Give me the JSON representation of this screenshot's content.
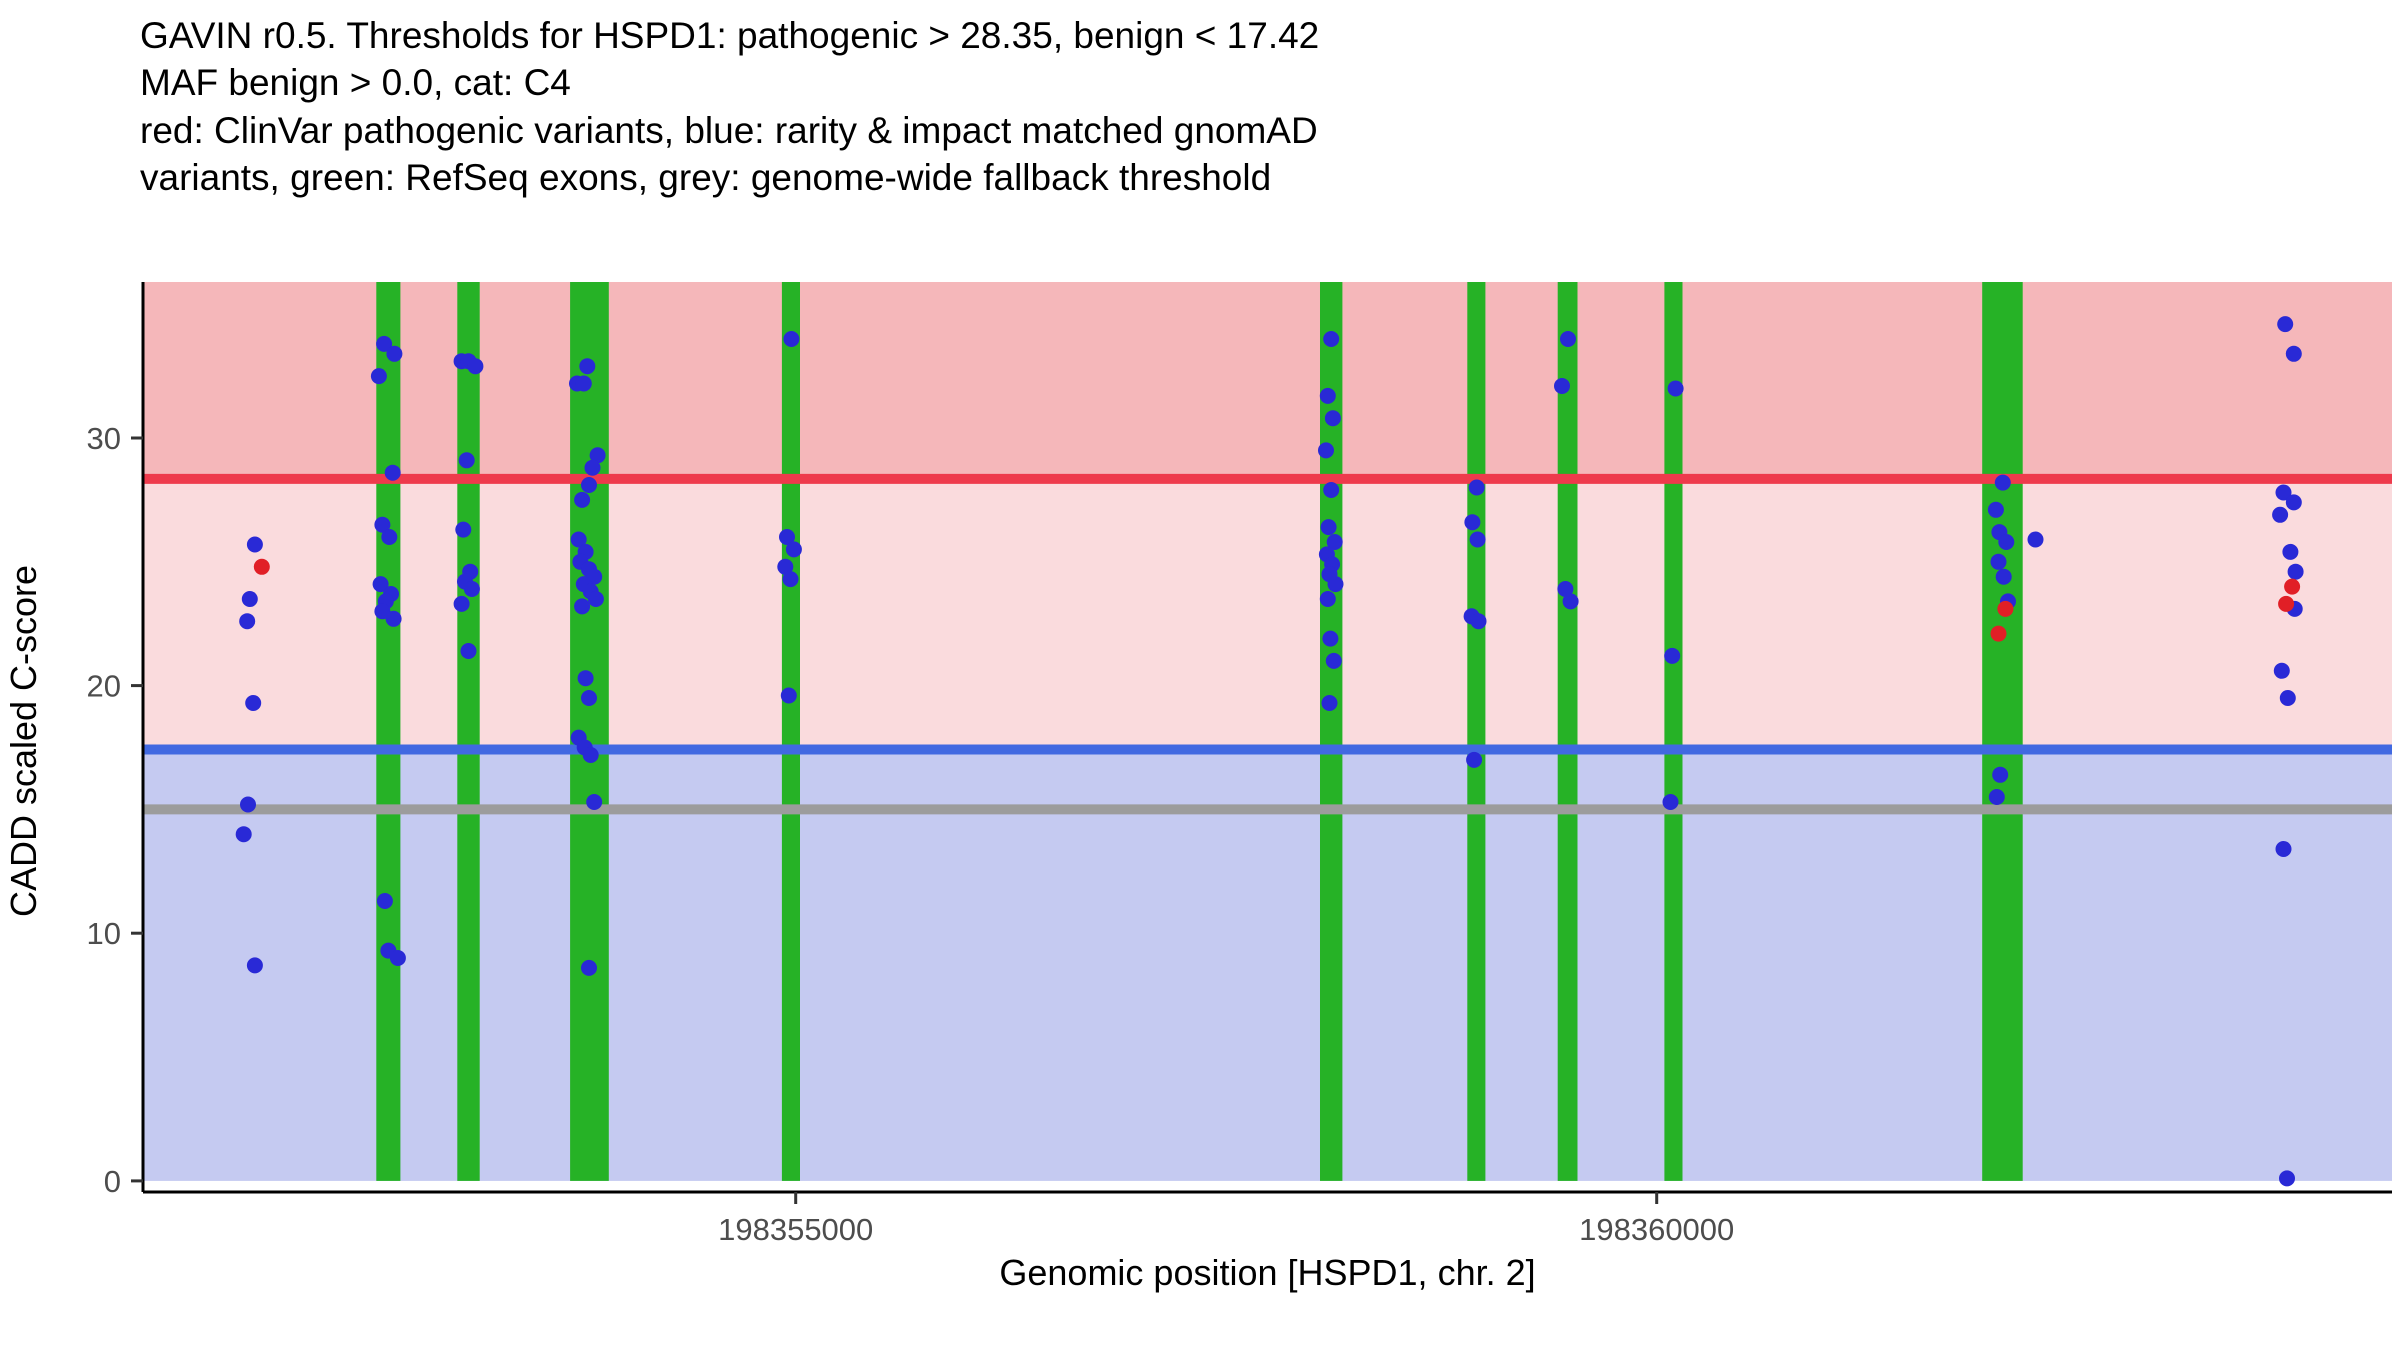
{
  "title": {
    "lines": [
      "GAVIN r0.5. Thresholds for HSPD1: pathogenic > 28.35, benign < 17.42",
      "MAF benign > 0.0, cat: C4",
      "red: ClinVar pathogenic variants, blue: rarity & impact matched gnomAD",
      "variants, green: RefSeq exons, grey: genome-wide fallback threshold"
    ]
  },
  "axes": {
    "x_label": "Genomic position [HSPD1, chr. 2]",
    "y_label": "CADD scaled C-score",
    "x_ticks": [
      198355000,
      198360000
    ],
    "x_tick_labels": [
      "198355000",
      "198360000"
    ],
    "y_ticks": [
      0,
      10,
      20,
      30
    ],
    "y_tick_labels": [
      "0",
      "10",
      "20",
      "30"
    ]
  },
  "chart_data": {
    "type": "scatter",
    "title": "GAVIN r0.5. Thresholds for HSPD1",
    "xlabel": "Genomic position [HSPD1, chr. 2]",
    "ylabel": "CADD scaled C-score",
    "x_range": [
      198351210,
      198364270
    ],
    "y_range": [
      -0.45,
      36.3
    ],
    "grid": false,
    "legend": "none (encoded in title text)",
    "thresholds": {
      "pathogenic_gt": 28.35,
      "benign_lt": 17.42,
      "genome_wide_fallback": 15.0,
      "maf_benign_gt": 0.0,
      "category": "C4"
    },
    "bands": [
      {
        "name": "benign-region",
        "y0": 0,
        "y1": 17.42,
        "color": "#c5caf1"
      },
      {
        "name": "vous-region",
        "y0": 17.42,
        "y1": 28.35,
        "color": "#fadbdd"
      },
      {
        "name": "pathogenic-region",
        "y0": 28.35,
        "y1": 36.3,
        "color": "#f5b7ba"
      }
    ],
    "lines": [
      {
        "name": "pathogenic-threshold-line",
        "y": 28.35,
        "color": "#ee3a4c",
        "width": 10
      },
      {
        "name": "benign-threshold-line",
        "y": 17.42,
        "color": "#4169e1",
        "width": 10
      },
      {
        "name": "fallback-threshold-line",
        "y": 15.0,
        "color": "#9c9c9c",
        "width": 10
      }
    ],
    "exons": [
      {
        "start": 198352565,
        "end": 198352705
      },
      {
        "start": 198353035,
        "end": 198353165
      },
      {
        "start": 198353690,
        "end": 198353915
      },
      {
        "start": 198354920,
        "end": 198355025
      },
      {
        "start": 198358045,
        "end": 198358175
      },
      {
        "start": 198358900,
        "end": 198359005
      },
      {
        "start": 198359425,
        "end": 198359540
      },
      {
        "start": 198360045,
        "end": 198360150
      },
      {
        "start": 198361890,
        "end": 198362125
      }
    ],
    "exon_color": "#26b226",
    "series": [
      {
        "name": "rarity & impact matched gnomAD variants",
        "color": "#2929d6",
        "point_radius": 8,
        "points": [
          [
            198351860,
            25.7
          ],
          [
            198351830,
            23.5
          ],
          [
            198351815,
            22.6
          ],
          [
            198351850,
            19.3
          ],
          [
            198351820,
            15.2
          ],
          [
            198351795,
            14.0
          ],
          [
            198351860,
            8.7
          ],
          [
            198352610,
            33.8
          ],
          [
            198352670,
            33.4
          ],
          [
            198352580,
            32.5
          ],
          [
            198352660,
            28.6
          ],
          [
            198352600,
            26.5
          ],
          [
            198352640,
            26.0
          ],
          [
            198352590,
            24.1
          ],
          [
            198352650,
            23.7
          ],
          [
            198352620,
            23.4
          ],
          [
            198352600,
            23.0
          ],
          [
            198352665,
            22.7
          ],
          [
            198352615,
            11.3
          ],
          [
            198352635,
            9.3
          ],
          [
            198352690,
            9.0
          ],
          [
            198353060,
            33.1
          ],
          [
            198353100,
            33.1
          ],
          [
            198353140,
            32.9
          ],
          [
            198353090,
            29.1
          ],
          [
            198353070,
            26.3
          ],
          [
            198353110,
            24.6
          ],
          [
            198353080,
            24.2
          ],
          [
            198353120,
            23.9
          ],
          [
            198353060,
            23.3
          ],
          [
            198353100,
            21.4
          ],
          [
            198353790,
            32.9
          ],
          [
            198353730,
            32.2
          ],
          [
            198353770,
            32.2
          ],
          [
            198353850,
            29.3
          ],
          [
            198353820,
            28.8
          ],
          [
            198353800,
            28.1
          ],
          [
            198353760,
            27.5
          ],
          [
            198353740,
            25.9
          ],
          [
            198353780,
            25.4
          ],
          [
            198353750,
            25.0
          ],
          [
            198353800,
            24.7
          ],
          [
            198353830,
            24.4
          ],
          [
            198353770,
            24.1
          ],
          [
            198353810,
            23.8
          ],
          [
            198353840,
            23.5
          ],
          [
            198353760,
            23.2
          ],
          [
            198353780,
            20.3
          ],
          [
            198353800,
            19.5
          ],
          [
            198353740,
            17.9
          ],
          [
            198353775,
            17.5
          ],
          [
            198353810,
            17.2
          ],
          [
            198353830,
            15.3
          ],
          [
            198353800,
            8.6
          ],
          [
            198354975,
            34.0
          ],
          [
            198354950,
            26.0
          ],
          [
            198354990,
            25.5
          ],
          [
            198354940,
            24.8
          ],
          [
            198354970,
            24.3
          ],
          [
            198354960,
            19.6
          ],
          [
            198358110,
            34.0
          ],
          [
            198358090,
            31.7
          ],
          [
            198358120,
            30.8
          ],
          [
            198358080,
            29.5
          ],
          [
            198358110,
            27.9
          ],
          [
            198358095,
            26.4
          ],
          [
            198358130,
            25.8
          ],
          [
            198358085,
            25.3
          ],
          [
            198358115,
            24.9
          ],
          [
            198358100,
            24.5
          ],
          [
            198358135,
            24.1
          ],
          [
            198358090,
            23.5
          ],
          [
            198358105,
            21.9
          ],
          [
            198358125,
            21.0
          ],
          [
            198358100,
            19.3
          ],
          [
            198358955,
            28.0
          ],
          [
            198358930,
            26.6
          ],
          [
            198358960,
            25.9
          ],
          [
            198358925,
            22.8
          ],
          [
            198358965,
            22.6
          ],
          [
            198358940,
            17.0
          ],
          [
            198359485,
            34.0
          ],
          [
            198359450,
            32.1
          ],
          [
            198359470,
            23.9
          ],
          [
            198359500,
            23.4
          ],
          [
            198360110,
            32.0
          ],
          [
            198360090,
            21.2
          ],
          [
            198360080,
            15.3
          ],
          [
            198362010,
            28.2
          ],
          [
            198361970,
            27.1
          ],
          [
            198361990,
            26.2
          ],
          [
            198362030,
            25.8
          ],
          [
            198361985,
            25.0
          ],
          [
            198362015,
            24.4
          ],
          [
            198362040,
            23.4
          ],
          [
            198362200,
            25.9
          ],
          [
            198361995,
            16.4
          ],
          [
            198361975,
            15.5
          ],
          [
            198363650,
            34.6
          ],
          [
            198363700,
            33.4
          ],
          [
            198363640,
            27.8
          ],
          [
            198363700,
            27.4
          ],
          [
            198363620,
            26.9
          ],
          [
            198363680,
            25.4
          ],
          [
            198363710,
            24.6
          ],
          [
            198363705,
            23.1
          ],
          [
            198363630,
            20.6
          ],
          [
            198363665,
            19.5
          ],
          [
            198363640,
            13.4
          ],
          [
            198363660,
            0.1
          ]
        ]
      },
      {
        "name": "ClinVar pathogenic variants",
        "color": "#e11f26",
        "point_radius": 8,
        "points": [
          [
            198351900,
            24.8
          ],
          [
            198361985,
            22.1
          ],
          [
            198362025,
            23.1
          ],
          [
            198363690,
            24.0
          ],
          [
            198363655,
            23.3
          ]
        ]
      }
    ],
    "axis_style": {
      "axis_line_color": "#000000",
      "tick_color": "#333333",
      "tick_label_color": "#4d4d4d",
      "tick_label_size": 31
    }
  }
}
